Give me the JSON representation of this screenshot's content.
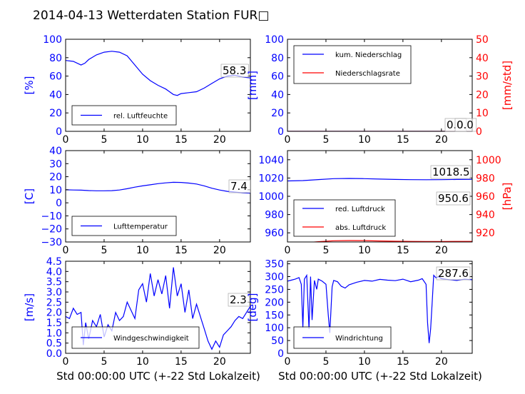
{
  "figure": {
    "title": "2014-04-13 Wetterdaten Station FUR□",
    "xlabel": "Std 00:00:00 UTC (+-22 Std Lokalzeit)",
    "colors": {
      "primary": "#0000ff",
      "secondary": "#ff0000",
      "frame": "#000000"
    }
  },
  "chart_data": [
    {
      "type": "line",
      "ylabel": "[%]",
      "xlim": [
        0,
        24
      ],
      "ylim": [
        0,
        100
      ],
      "xticks": [
        "0",
        "5",
        "10",
        "15",
        "20"
      ],
      "yticks": [
        "0",
        "20",
        "40",
        "60",
        "80",
        "100"
      ],
      "legend": [
        "rel. Luftfeuchte"
      ],
      "legend_position": "lower-left",
      "annotation": "58.3",
      "series": [
        {
          "name": "rel. Luftfeuchte",
          "color": "#0000ff",
          "x": [
            0,
            1,
            2,
            2.5,
            3,
            4,
            5,
            6,
            7,
            8,
            9,
            10,
            11,
            12,
            13,
            14,
            14.5,
            15,
            16,
            17,
            18,
            19,
            20,
            21,
            22,
            23,
            24
          ],
          "y": [
            77,
            76,
            72,
            74,
            78,
            83,
            86,
            87,
            86,
            82,
            72,
            62,
            55,
            50,
            46,
            40,
            39,
            41,
            42,
            43,
            47,
            52,
            57,
            60,
            61,
            59,
            58
          ]
        }
      ]
    },
    {
      "type": "line",
      "ylabel": "[mm]",
      "ylabel_right": "[mm/std]",
      "xlim": [
        0,
        24
      ],
      "ylim": [
        0,
        100
      ],
      "ylim_right": [
        0,
        50
      ],
      "xticks": [
        "0",
        "5",
        "10",
        "15",
        "20"
      ],
      "yticks": [
        "0",
        "20",
        "40",
        "60",
        "80",
        "100"
      ],
      "yticks_right": [
        "0",
        "10",
        "20",
        "30",
        "40",
        "50"
      ],
      "legend": [
        "kum. Niederschlag",
        "Niederschlagsrate"
      ],
      "legend_position": "upper-left",
      "annotation": "0.0",
      "annotation2": "0.0",
      "series": [
        {
          "name": "kum. Niederschlag",
          "color": "#0000ff",
          "x": [
            0,
            24
          ],
          "y": [
            0,
            0
          ]
        },
        {
          "name": "Niederschlagsrate",
          "color": "#ff0000",
          "x": [
            0,
            24
          ],
          "y": [
            0,
            0
          ]
        }
      ]
    },
    {
      "type": "line",
      "ylabel": "[C]",
      "xlim": [
        0,
        24
      ],
      "ylim": [
        -30,
        40
      ],
      "xticks": [
        "0",
        "5",
        "10",
        "15",
        "20"
      ],
      "yticks": [
        "−30",
        "−20",
        "−10",
        "0",
        "10",
        "20",
        "30",
        "40"
      ],
      "legend": [
        "Lufttemperatur"
      ],
      "legend_position": "lower-left",
      "annotation": "7.4",
      "series": [
        {
          "name": "Lufttemperatur",
          "color": "#0000ff",
          "x": [
            0,
            1,
            2,
            3,
            4,
            5,
            6,
            7,
            8,
            9,
            10,
            11,
            12,
            13,
            14,
            15,
            16,
            17,
            18,
            19,
            20,
            21,
            22,
            23,
            24
          ],
          "y": [
            10,
            9.8,
            9.7,
            9.4,
            9.2,
            9.2,
            9.3,
            9.8,
            10.8,
            12,
            13,
            13.8,
            14.7,
            15.3,
            15.7,
            15.6,
            15.1,
            14.4,
            13,
            11.2,
            9.8,
            8.8,
            8.2,
            7.7,
            7.4
          ]
        }
      ]
    },
    {
      "type": "line",
      "ylabel_right": "[hPa]",
      "xlim": [
        0,
        24
      ],
      "ylim": [
        950,
        1050
      ],
      "ylim_right": [
        910,
        1010
      ],
      "xticks": [
        "0",
        "5",
        "10",
        "15",
        "20"
      ],
      "yticks": [
        "960",
        "980",
        "1000",
        "1020",
        "1040"
      ],
      "yticks_right": [
        "920",
        "940",
        "960",
        "980",
        "1000"
      ],
      "legend": [
        "red. Luftdruck",
        "abs. Luftdruck"
      ],
      "legend_position": "lower-left",
      "annotation": "1018.5",
      "annotation2": "950.6",
      "series": [
        {
          "name": "red. Luftdruck",
          "color": "#0000ff",
          "x": [
            0,
            2,
            4,
            6,
            8,
            10,
            12,
            14,
            16,
            18,
            20,
            22,
            24
          ],
          "y": [
            1016.8,
            1017.2,
            1018.3,
            1019.3,
            1019.5,
            1019.3,
            1018.8,
            1018.4,
            1018.2,
            1018.1,
            1018.2,
            1018.4,
            1018.5
          ]
        },
        {
          "name": "abs. Luftdruck",
          "color": "#ff0000",
          "x": [
            0,
            2,
            4,
            6,
            8,
            10,
            12,
            14,
            16,
            18,
            20,
            22,
            24
          ],
          "y": [
            948.5,
            949.0,
            950.3,
            951.3,
            951.6,
            951.5,
            951.1,
            950.8,
            950.6,
            950.5,
            950.5,
            950.6,
            950.6
          ]
        }
      ]
    },
    {
      "type": "line",
      "ylabel": "[m/s]",
      "xlim": [
        0,
        24
      ],
      "ylim": [
        0,
        4.5
      ],
      "xticks": [
        "0",
        "5",
        "10",
        "15",
        "20"
      ],
      "yticks": [
        "0.0",
        "0.5",
        "1.0",
        "1.5",
        "2.0",
        "2.5",
        "3.0",
        "3.5",
        "4.0",
        "4.5"
      ],
      "legend": [
        "Windgeschwindigkeit"
      ],
      "legend_position": "lower-left",
      "annotation": "2.3",
      "series": [
        {
          "name": "Windgeschwindigkeit",
          "color": "#0000ff",
          "x": [
            0,
            0.5,
            1,
            1.5,
            2,
            2.3,
            2.6,
            3,
            3.5,
            4,
            4.5,
            5,
            5.5,
            6,
            6.5,
            7,
            7.5,
            8,
            8.5,
            9,
            9.5,
            10,
            10.5,
            11,
            11.5,
            12,
            12.5,
            13,
            13.5,
            14,
            14.5,
            15,
            15.5,
            16,
            16.5,
            17,
            17.5,
            18,
            18.5,
            19,
            19.5,
            20,
            20.5,
            21,
            21.5,
            22,
            22.5,
            23,
            23.5,
            24
          ],
          "y": [
            1.8,
            1.7,
            2.2,
            1.9,
            2.0,
            0.4,
            1.5,
            0.7,
            1.6,
            1.3,
            1.9,
            0.8,
            1.4,
            1.1,
            2.0,
            1.6,
            1.8,
            2.5,
            2.1,
            1.7,
            3.1,
            3.4,
            2.5,
            3.9,
            2.8,
            3.6,
            2.9,
            3.8,
            2.2,
            4.2,
            2.8,
            3.4,
            2.0,
            3.1,
            1.7,
            2.4,
            1.8,
            1.2,
            0.6,
            0.2,
            0.6,
            0.3,
            0.9,
            1.1,
            1.3,
            1.6,
            1.8,
            1.7,
            2.0,
            2.3
          ]
        }
      ]
    },
    {
      "type": "line",
      "ylabel": "[deg]",
      "xlim": [
        0,
        24
      ],
      "ylim": [
        0,
        360
      ],
      "xticks": [
        "0",
        "5",
        "10",
        "15",
        "20"
      ],
      "yticks": [
        "0",
        "50",
        "100",
        "150",
        "200",
        "250",
        "300",
        "350"
      ],
      "legend": [
        "Windrichtung"
      ],
      "legend_position": "lower-left",
      "annotation": "287.6",
      "series": [
        {
          "name": "Windrichtung",
          "color": "#0000ff",
          "x": [
            0,
            0.5,
            1,
            1.5,
            1.8,
            2,
            2.2,
            2.5,
            2.8,
            3,
            3.2,
            3.5,
            3.8,
            4,
            4.5,
            5,
            5.3,
            5.5,
            5.8,
            6,
            6.5,
            7,
            7.5,
            8,
            9,
            10,
            11,
            12,
            13,
            14,
            15,
            16,
            17,
            17.5,
            18,
            18.2,
            18.4,
            18.6,
            18.8,
            19,
            19.3,
            19.6,
            20,
            21,
            22,
            23,
            24
          ],
          "y": [
            282,
            286,
            290,
            296,
            270,
            100,
            290,
            305,
            95,
            300,
            130,
            285,
            250,
            290,
            282,
            270,
            150,
            80,
            260,
            285,
            280,
            262,
            255,
            268,
            278,
            285,
            282,
            289,
            286,
            284,
            290,
            280,
            286,
            292,
            270,
            120,
            40,
            95,
            200,
            305,
            295,
            300,
            292,
            288,
            285,
            290,
            287.6
          ]
        }
      ]
    }
  ]
}
